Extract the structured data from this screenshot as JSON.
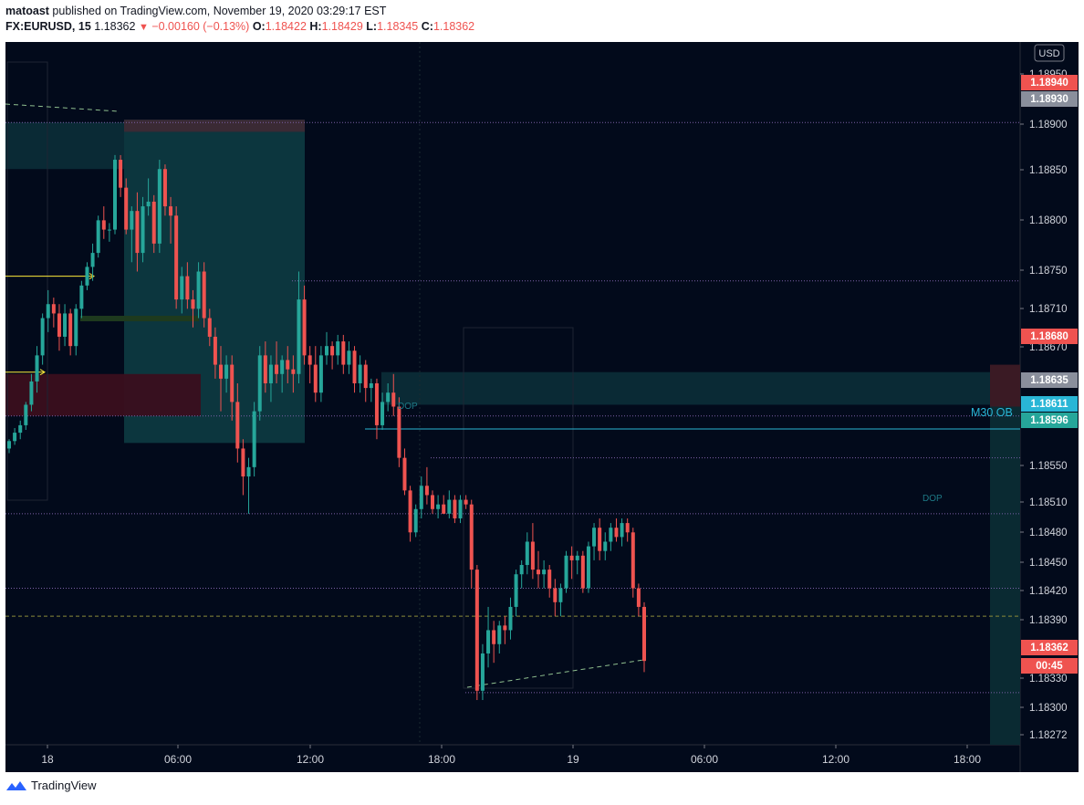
{
  "header": {
    "publisher": "matoast",
    "published_text": "published on TradingView.com, November 19, 2020 03:29:17 EST",
    "symbol": "FX:EURUSD, 15",
    "last": "1.18362",
    "change": "−0.00160 (−0.13%)",
    "o_label": "O:",
    "o_value": "1.18422",
    "h_label": "H:",
    "h_value": "1.18429",
    "l_label": "L:",
    "l_value": "1.18345",
    "c_label": "C:",
    "c_value": "1.18362"
  },
  "footer": {
    "brand": "TradingView"
  },
  "currency_label": "USD",
  "colors": {
    "background": "#020a1b",
    "up": "#26a69a",
    "down": "#ef5350"
  },
  "annotations": {
    "m30_ob": "M30 OB",
    "dop1": "DOP",
    "dop2": "DOP"
  },
  "chart_data": {
    "type": "candlestick",
    "symbol": "FX:EURUSD",
    "timeframe": "15",
    "y_ticks": [
      "1.18950",
      "1.18900",
      "1.18850",
      "1.18800",
      "1.18750",
      "1.18710",
      "1.18670",
      "1.18550",
      "1.18510",
      "1.18480",
      "1.18450",
      "1.18420",
      "1.18390",
      "1.18330",
      "1.18300",
      "1.18272"
    ],
    "x_ticks": [
      "18",
      "06:00",
      "12:00",
      "18:00",
      "19",
      "06:00",
      "12:00",
      "18:00"
    ],
    "price_labels": [
      {
        "text": "1.18940",
        "color": "#ef5350"
      },
      {
        "text": "1.18930",
        "color": "#8a8f9c"
      },
      {
        "text": "1.18680",
        "color": "#ef5350"
      },
      {
        "text": "1.18635",
        "color": "#8a8f9c"
      },
      {
        "text": "1.18611",
        "color": "#29b6d6"
      },
      {
        "text": "1.18596",
        "color": "#26a69a"
      },
      {
        "text": "1.18362",
        "color": "#ef5350"
      },
      {
        "text": "00:45",
        "color": "#ef5350"
      }
    ],
    "ohlc": [
      [
        1.1859,
        1.186,
        1.18585,
        1.18598
      ],
      [
        1.18598,
        1.18612,
        1.18594,
        1.18607
      ],
      [
        1.18607,
        1.1862,
        1.186,
        1.18615
      ],
      [
        1.18615,
        1.1864,
        1.1861,
        1.18637
      ],
      [
        1.18637,
        1.1867,
        1.1863,
        1.18662
      ],
      [
        1.18662,
        1.187,
        1.1865,
        1.1869
      ],
      [
        1.1869,
        1.18735,
        1.1868,
        1.1873
      ],
      [
        1.1873,
        1.1876,
        1.18715,
        1.18745
      ],
      [
        1.18745,
        1.18752,
        1.1872,
        1.18735
      ],
      [
        1.18735,
        1.18745,
        1.18695,
        1.1871
      ],
      [
        1.1871,
        1.18745,
        1.187,
        1.18735
      ],
      [
        1.18735,
        1.1874,
        1.1869,
        1.187
      ],
      [
        1.187,
        1.18745,
        1.1869,
        1.1874
      ],
      [
        1.1874,
        1.1877,
        1.1873,
        1.18765
      ],
      [
        1.18765,
        1.1879,
        1.1876,
        1.18785
      ],
      [
        1.18785,
        1.1881,
        1.1877,
        1.188
      ],
      [
        1.188,
        1.1884,
        1.18795,
        1.18835
      ],
      [
        1.18835,
        1.1885,
        1.18815,
        1.18825
      ],
      [
        1.18825,
        1.18832,
        1.18812,
        1.18825
      ],
      [
        1.18825,
        1.18905,
        1.1882,
        1.189
      ],
      [
        1.189,
        1.18905,
        1.1886,
        1.1887
      ],
      [
        1.1887,
        1.1888,
        1.1882,
        1.18825
      ],
      [
        1.18825,
        1.1885,
        1.1879,
        1.18845
      ],
      [
        1.18845,
        1.18865,
        1.1878,
        1.188
      ],
      [
        1.188,
        1.1886,
        1.1879,
        1.1885
      ],
      [
        1.1885,
        1.1888,
        1.1884,
        1.18855
      ],
      [
        1.18855,
        1.18862,
        1.188,
        1.1881
      ],
      [
        1.1881,
        1.189,
        1.188,
        1.1889
      ],
      [
        1.1889,
        1.18895,
        1.1884,
        1.1885
      ],
      [
        1.1885,
        1.1886,
        1.1881,
        1.1884
      ],
      [
        1.1884,
        1.1885,
        1.1874,
        1.1875
      ],
      [
        1.1875,
        1.18785,
        1.18735,
        1.18775
      ],
      [
        1.18775,
        1.1879,
        1.1874,
        1.1875
      ],
      [
        1.1875,
        1.1876,
        1.1872,
        1.1874
      ],
      [
        1.1874,
        1.1879,
        1.1873,
        1.1878
      ],
      [
        1.1878,
        1.1879,
        1.1872,
        1.1873
      ],
      [
        1.1873,
        1.1874,
        1.187,
        1.1871
      ],
      [
        1.1871,
        1.1872,
        1.18665,
        1.1868
      ],
      [
        1.1868,
        1.187,
        1.1863,
        1.18665
      ],
      [
        1.18665,
        1.1869,
        1.1865,
        1.1868
      ],
      [
        1.1868,
        1.1869,
        1.1862,
        1.1864
      ],
      [
        1.1864,
        1.1866,
        1.18575,
        1.1859
      ],
      [
        1.1859,
        1.186,
        1.1854,
        1.1856
      ],
      [
        1.1856,
        1.1858,
        1.1852,
        1.1857
      ],
      [
        1.1857,
        1.1864,
        1.1856,
        1.1863
      ],
      [
        1.1863,
        1.187,
        1.1862,
        1.1869
      ],
      [
        1.1869,
        1.18705,
        1.1865,
        1.1866
      ],
      [
        1.1866,
        1.1869,
        1.1864,
        1.1868
      ],
      [
        1.1868,
        1.18705,
        1.1866,
        1.1867
      ],
      [
        1.1867,
        1.1869,
        1.1865,
        1.18685
      ],
      [
        1.18685,
        1.187,
        1.1866,
        1.18675
      ],
      [
        1.18675,
        1.1869,
        1.1865,
        1.1867
      ],
      [
        1.1867,
        1.1878,
        1.1866,
        1.1875
      ],
      [
        1.1875,
        1.18765,
        1.1868,
        1.1869
      ],
      [
        1.1869,
        1.187,
        1.1866,
        1.1868
      ],
      [
        1.1868,
        1.187,
        1.1864,
        1.1865
      ],
      [
        1.1865,
        1.187,
        1.1864,
        1.1869
      ],
      [
        1.1869,
        1.18715,
        1.1868,
        1.187
      ],
      [
        1.187,
        1.18705,
        1.18675,
        1.1869
      ],
      [
        1.1869,
        1.18712,
        1.1868,
        1.18705
      ],
      [
        1.18705,
        1.18712,
        1.1867,
        1.1868
      ],
      [
        1.1868,
        1.18705,
        1.1867,
        1.18695
      ],
      [
        1.18695,
        1.187,
        1.1865,
        1.1866
      ],
      [
        1.1866,
        1.1869,
        1.1865,
        1.1868
      ],
      [
        1.1868,
        1.18685,
        1.1864,
        1.18655
      ],
      [
        1.18655,
        1.18665,
        1.1864,
        1.1866
      ],
      [
        1.1866,
        1.18665,
        1.186,
        1.18615
      ],
      [
        1.18615,
        1.1865,
        1.1861,
        1.1864
      ],
      [
        1.1864,
        1.1866,
        1.1863,
        1.1865
      ],
      [
        1.1865,
        1.1867,
        1.18625,
        1.18635
      ],
      [
        1.18635,
        1.18645,
        1.1857,
        1.1858
      ],
      [
        1.1858,
        1.1859,
        1.1854,
        1.18545
      ],
      [
        1.18545,
        1.1855,
        1.1849,
        1.185
      ],
      [
        1.185,
        1.1853,
        1.18495,
        1.18525
      ],
      [
        1.18525,
        1.1856,
        1.18515,
        1.1855
      ],
      [
        1.1855,
        1.1857,
        1.1853,
        1.1854
      ],
      [
        1.1854,
        1.18545,
        1.1852,
        1.18525
      ],
      [
        1.18525,
        1.1854,
        1.18515,
        1.1853
      ],
      [
        1.1853,
        1.1854,
        1.1852,
        1.1852
      ],
      [
        1.1852,
        1.18545,
        1.18515,
        1.18535
      ],
      [
        1.18535,
        1.1854,
        1.1851,
        1.18515
      ],
      [
        1.18515,
        1.1854,
        1.1851,
        1.18535
      ],
      [
        1.18535,
        1.1854,
        1.18525,
        1.1853
      ],
      [
        1.1853,
        1.18535,
        1.1844,
        1.1846
      ],
      [
        1.1846,
        1.18465,
        1.1832,
        1.1833
      ],
      [
        1.1833,
        1.1838,
        1.1832,
        1.1837
      ],
      [
        1.1837,
        1.1842,
        1.18355,
        1.18395
      ],
      [
        1.18395,
        1.18405,
        1.1836,
        1.1838
      ],
      [
        1.1838,
        1.18405,
        1.1837,
        1.184
      ],
      [
        1.184,
        1.1841,
        1.1838,
        1.18395
      ],
      [
        1.18395,
        1.1843,
        1.18385,
        1.1842
      ],
      [
        1.1842,
        1.1846,
        1.1841,
        1.18455
      ],
      [
        1.18455,
        1.1847,
        1.1844,
        1.18465
      ],
      [
        1.18465,
        1.185,
        1.18455,
        1.1849
      ],
      [
        1.1849,
        1.1851,
        1.1845,
        1.1846
      ],
      [
        1.1846,
        1.1848,
        1.1844,
        1.18455
      ],
      [
        1.18455,
        1.1847,
        1.1844,
        1.1846
      ],
      [
        1.1846,
        1.18465,
        1.1843,
        1.1844
      ],
      [
        1.1844,
        1.1845,
        1.1841,
        1.18425
      ],
      [
        1.18425,
        1.18445,
        1.1841,
        1.1844
      ],
      [
        1.1844,
        1.1848,
        1.18435,
        1.18475
      ],
      [
        1.18475,
        1.18485,
        1.1845,
        1.1847
      ],
      [
        1.1847,
        1.1848,
        1.18455,
        1.18475
      ],
      [
        1.18475,
        1.1848,
        1.18435,
        1.1844
      ],
      [
        1.1844,
        1.1849,
        1.18435,
        1.18485
      ],
      [
        1.18485,
        1.1851,
        1.1847,
        1.18505
      ],
      [
        1.18505,
        1.18515,
        1.1847,
        1.1848
      ],
      [
        1.1848,
        1.185,
        1.1847,
        1.1849
      ],
      [
        1.1849,
        1.1851,
        1.1848,
        1.18505
      ],
      [
        1.18505,
        1.18515,
        1.1849,
        1.18495
      ],
      [
        1.18495,
        1.18515,
        1.18485,
        1.1851
      ],
      [
        1.1851,
        1.18515,
        1.1849,
        1.185
      ],
      [
        1.185,
        1.18505,
        1.1843,
        1.1844
      ],
      [
        1.1844,
        1.18445,
        1.1841,
        1.1842
      ],
      [
        1.1842,
        1.18425,
        1.1835,
        1.18362
      ]
    ]
  }
}
